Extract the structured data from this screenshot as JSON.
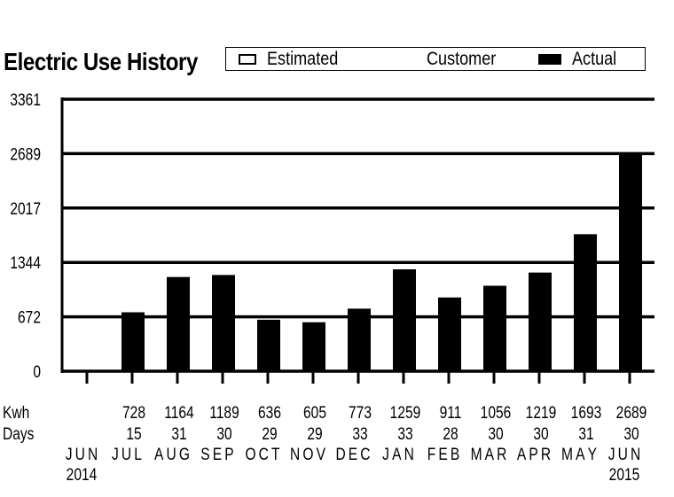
{
  "chart_data": {
    "type": "bar",
    "title": "Electric Use History",
    "legend": {
      "placement": "top",
      "entries": [
        {
          "label": "Estimated",
          "swatch": "outline"
        },
        {
          "label": "Customer",
          "swatch": "none"
        },
        {
          "label": "Actual",
          "swatch": "filled"
        }
      ]
    },
    "ylim": [
      0,
      3361
    ],
    "yticks": [
      "0",
      "672",
      "1344",
      "2017",
      "2689",
      "3361"
    ],
    "row_labels": {
      "kwh": "Kwh",
      "days": "Days"
    },
    "categories": [
      {
        "month": "JUN",
        "year": "2014",
        "kwh": null,
        "days": null
      },
      {
        "month": "JUL",
        "year": "",
        "kwh": 728,
        "days": 15
      },
      {
        "month": "AUG",
        "year": "",
        "kwh": 1164,
        "days": 31
      },
      {
        "month": "SEP",
        "year": "",
        "kwh": 1189,
        "days": 30
      },
      {
        "month": "OCT",
        "year": "",
        "kwh": 636,
        "days": 29
      },
      {
        "month": "NOV",
        "year": "",
        "kwh": 605,
        "days": 29
      },
      {
        "month": "DEC",
        "year": "",
        "kwh": 773,
        "days": 33
      },
      {
        "month": "JAN",
        "year": "",
        "kwh": 1259,
        "days": 33
      },
      {
        "month": "FEB",
        "year": "",
        "kwh": 911,
        "days": 28
      },
      {
        "month": "MAR",
        "year": "",
        "kwh": 1056,
        "days": 30
      },
      {
        "month": "APR",
        "year": "",
        "kwh": 1219,
        "days": 30
      },
      {
        "month": "MAY",
        "year": "",
        "kwh": 1693,
        "days": 31
      },
      {
        "month": "JUN",
        "year": "2015",
        "kwh": 2689,
        "days": 30
      }
    ],
    "bar_color": "#000000",
    "grid": true
  }
}
